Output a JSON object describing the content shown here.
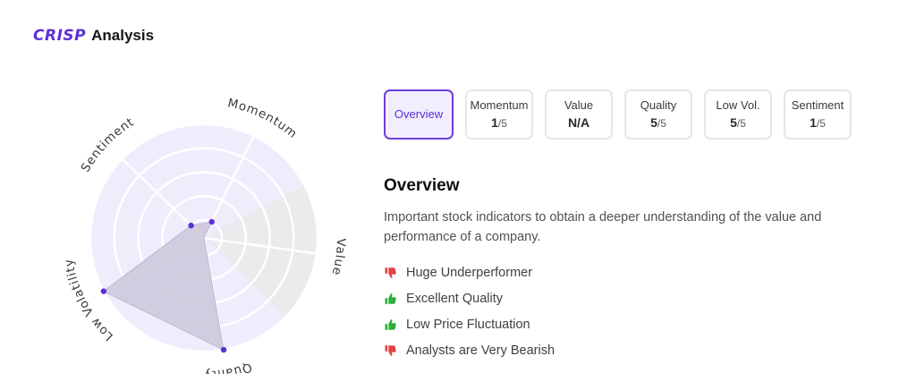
{
  "header": {
    "logo_text": "CRISP",
    "title": "Analysis",
    "brand_color": "#5b2fd6"
  },
  "radar": {
    "axes": [
      {
        "name": "Momentum",
        "score": 1
      },
      {
        "name": "Value",
        "score": null
      },
      {
        "name": "Quality",
        "score": 5
      },
      {
        "name": "Low Volatility",
        "score": 5
      },
      {
        "name": "Sentiment",
        "score": 1
      }
    ],
    "max_score": 5,
    "inactive_axis": "Value",
    "colors": {
      "ring_fill": "#efecfc",
      "inactive_fill": "#ebebee",
      "polygon_fill": "#cdc9dc",
      "point": "#5b2fd6"
    }
  },
  "tabs": [
    {
      "id": "overview",
      "label": "Overview",
      "active": true
    },
    {
      "id": "momentum",
      "label": "Momentum",
      "score": "1",
      "denominator": "/5"
    },
    {
      "id": "value",
      "label": "Value",
      "score": "N/A",
      "denominator": ""
    },
    {
      "id": "quality",
      "label": "Quality",
      "score": "5",
      "denominator": "/5"
    },
    {
      "id": "low-vol",
      "label": "Low Vol.",
      "score": "5",
      "denominator": "/5"
    },
    {
      "id": "sentiment",
      "label": "Sentiment",
      "score": "1",
      "denominator": "/5"
    }
  ],
  "overview": {
    "title": "Overview",
    "description": "Important stock indicators to obtain a deeper understanding of the value and performance of a company.",
    "items": [
      {
        "text": "Huge Underperformer",
        "sentiment": "negative",
        "icon": "thumbs-down-icon"
      },
      {
        "text": "Excellent Quality",
        "sentiment": "positive",
        "icon": "thumbs-up-icon"
      },
      {
        "text": "Low Price Fluctuation",
        "sentiment": "positive",
        "icon": "thumbs-up-icon"
      },
      {
        "text": "Analysts are Very Bearish",
        "sentiment": "negative",
        "icon": "thumbs-down-icon"
      }
    ],
    "colors": {
      "positive": "#2fae3c",
      "negative": "#e04444"
    }
  }
}
